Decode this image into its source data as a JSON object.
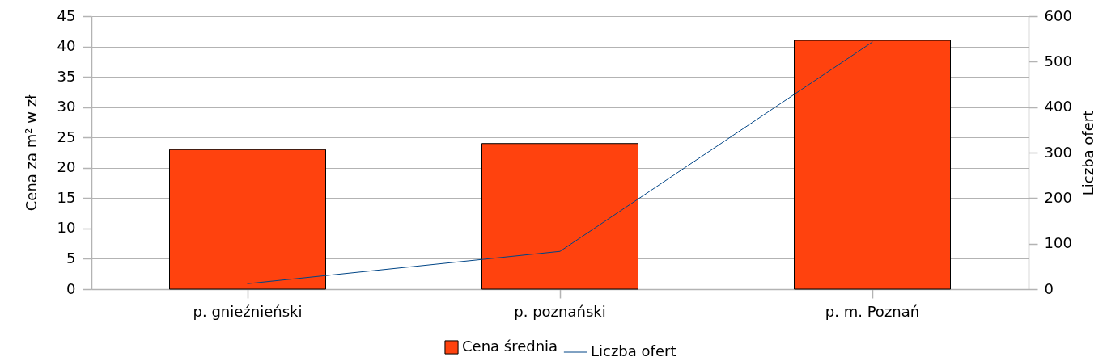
{
  "chart_data": {
    "type": "bar",
    "categories": [
      "p. gnieźnieński",
      "p. poznański",
      "p. m. Poznań"
    ],
    "ylabel": "Cena za m² w zł",
    "y2label": "Liczba ofert",
    "ylim": [
      0,
      45
    ],
    "yticks": [
      0,
      5,
      10,
      15,
      20,
      25,
      30,
      35,
      40,
      45
    ],
    "y2lim": [
      0,
      600
    ],
    "y2ticks": [
      0,
      100,
      200,
      300,
      400,
      500,
      600
    ],
    "grid": "y",
    "legend": "bottom",
    "series": [
      {
        "name": "Cena średnia",
        "color": "#ff420e",
        "values": [
          23,
          24,
          41
        ]
      },
      {
        "name": "Liczba ofert",
        "type": "line",
        "axis": "y2",
        "color": "#004586",
        "values": [
          12,
          83,
          543
        ]
      }
    ]
  }
}
